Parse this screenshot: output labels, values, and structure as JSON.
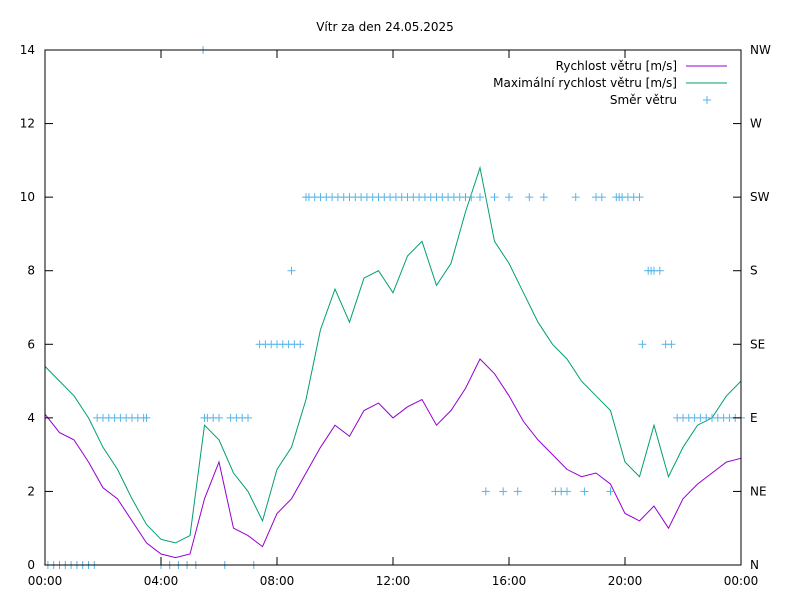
{
  "chart_data": {
    "type": "line",
    "title": "Vítr za den 24.05.2025",
    "x_ticks": [
      "00:00",
      "04:00",
      "08:00",
      "12:00",
      "16:00",
      "20:00",
      "00:00"
    ],
    "xlim_hours": [
      0,
      24
    ],
    "ylim": [
      0,
      14
    ],
    "y_ticks": [
      "0",
      "2",
      "4",
      "6",
      "8",
      "10",
      "12",
      "14"
    ],
    "y2_ticks": [
      "N",
      "NE",
      "E",
      "SE",
      "S",
      "SW",
      "W",
      "NW"
    ],
    "grid": false,
    "legend_position": "top-right",
    "series": [
      {
        "name": "Rychlost větru [m/s]",
        "color": "#9400d3",
        "style": "line",
        "axis": "left",
        "x": [
          0,
          0.5,
          1,
          1.5,
          2,
          2.5,
          3,
          3.5,
          4,
          4.5,
          5,
          5.5,
          6,
          6.5,
          7,
          7.5,
          8,
          8.5,
          9,
          9.5,
          10,
          10.5,
          11,
          11.5,
          12,
          12.5,
          13,
          13.5,
          14,
          14.5,
          15,
          15.5,
          16,
          16.5,
          17,
          17.5,
          18,
          18.5,
          19,
          19.5,
          20,
          20.5,
          21,
          21.5,
          22,
          22.5,
          23,
          23.5,
          24
        ],
        "values": [
          4.1,
          3.6,
          3.4,
          2.8,
          2.1,
          1.8,
          1.2,
          0.6,
          0.3,
          0.2,
          0.3,
          1.8,
          2.8,
          1.0,
          0.8,
          0.5,
          1.4,
          1.8,
          2.5,
          3.2,
          3.8,
          3.5,
          4.2,
          4.4,
          4.0,
          4.3,
          4.5,
          3.8,
          4.2,
          4.8,
          5.6,
          5.2,
          4.6,
          3.9,
          3.4,
          3.0,
          2.6,
          2.4,
          2.5,
          2.2,
          1.4,
          1.2,
          1.6,
          1.0,
          1.8,
          2.2,
          2.5,
          2.8,
          2.9
        ]
      },
      {
        "name": "Maximální rychlost větru [m/s]",
        "color": "#009e73",
        "style": "line",
        "axis": "left",
        "x": [
          0,
          0.5,
          1,
          1.5,
          2,
          2.5,
          3,
          3.5,
          4,
          4.5,
          5,
          5.5,
          6,
          6.5,
          7,
          7.5,
          8,
          8.5,
          9,
          9.5,
          10,
          10.5,
          11,
          11.5,
          12,
          12.5,
          13,
          13.5,
          14,
          14.5,
          15,
          15.5,
          16,
          16.5,
          17,
          17.5,
          18,
          18.5,
          19,
          19.5,
          20,
          20.5,
          21,
          21.5,
          22,
          22.5,
          23,
          23.5,
          24
        ],
        "values": [
          5.4,
          5.0,
          4.6,
          4.0,
          3.2,
          2.6,
          1.8,
          1.1,
          0.7,
          0.6,
          0.8,
          3.8,
          3.4,
          2.5,
          2.0,
          1.2,
          2.6,
          3.2,
          4.5,
          6.4,
          7.5,
          6.6,
          7.8,
          8.0,
          7.4,
          8.4,
          8.8,
          7.6,
          8.2,
          9.6,
          10.8,
          8.8,
          8.2,
          7.4,
          6.6,
          6.0,
          5.6,
          5.0,
          4.6,
          4.2,
          2.8,
          2.4,
          3.8,
          2.4,
          3.2,
          3.8,
          4.0,
          4.6,
          5.0
        ]
      },
      {
        "name": "Směr větru",
        "color": "#56b4e9",
        "style": "points",
        "axis": "right",
        "x": [
          0.1,
          0.3,
          0.5,
          0.7,
          0.9,
          1.1,
          1.3,
          1.5,
          1.7,
          1.8,
          2.0,
          2.2,
          2.4,
          2.6,
          2.8,
          3.0,
          3.2,
          3.4,
          3.5,
          4.0,
          4.3,
          4.6,
          4.9,
          5.2,
          5.45,
          5.5,
          5.6,
          5.8,
          6.0,
          6.2,
          6.4,
          6.6,
          6.8,
          7.0,
          7.2,
          7.4,
          7.6,
          7.8,
          8.0,
          8.2,
          8.4,
          8.5,
          8.6,
          8.8,
          9.0,
          9.1,
          9.3,
          9.5,
          9.7,
          9.9,
          10.1,
          10.3,
          10.5,
          10.7,
          10.9,
          11.1,
          11.3,
          11.5,
          11.7,
          11.9,
          12.1,
          12.3,
          12.5,
          12.7,
          12.9,
          13.1,
          13.3,
          13.5,
          13.7,
          13.9,
          14.1,
          14.3,
          14.5,
          14.7,
          15.0,
          15.2,
          15.5,
          15.8,
          16.0,
          16.3,
          16.7,
          17.2,
          17.6,
          17.8,
          18.0,
          18.3,
          18.6,
          19.0,
          19.2,
          19.5,
          19.7,
          19.8,
          19.9,
          20.1,
          20.3,
          20.5,
          20.6,
          20.8,
          20.9,
          21.0,
          21.2,
          21.4,
          21.6,
          21.8,
          22.0,
          22.2,
          22.4,
          22.6,
          22.8,
          23.0,
          23.2,
          23.4,
          23.6,
          23.8,
          24.0
        ],
        "values": [
          0,
          0,
          0,
          0,
          0,
          0,
          0,
          0,
          0,
          2,
          2,
          2,
          2,
          2,
          2,
          2,
          2,
          2,
          2,
          0,
          0,
          0,
          0,
          0,
          7,
          2,
          2,
          2,
          2,
          0,
          2,
          2,
          2,
          2,
          0,
          3,
          3,
          3,
          3,
          3,
          3,
          4,
          3,
          3,
          5,
          5,
          5,
          5,
          5,
          5,
          5,
          5,
          5,
          5,
          5,
          5,
          5,
          5,
          5,
          5,
          5,
          5,
          5,
          5,
          5,
          5,
          5,
          5,
          5,
          5,
          5,
          5,
          5,
          5,
          5,
          1,
          5,
          1,
          5,
          1,
          5,
          5,
          1,
          1,
          1,
          5,
          1,
          5,
          5,
          1,
          5,
          5,
          5,
          5,
          5,
          5,
          3,
          4,
          4,
          4,
          4,
          3,
          3,
          2,
          2,
          2,
          2,
          2,
          2,
          2,
          2,
          2,
          2,
          2,
          2
        ]
      }
    ]
  }
}
